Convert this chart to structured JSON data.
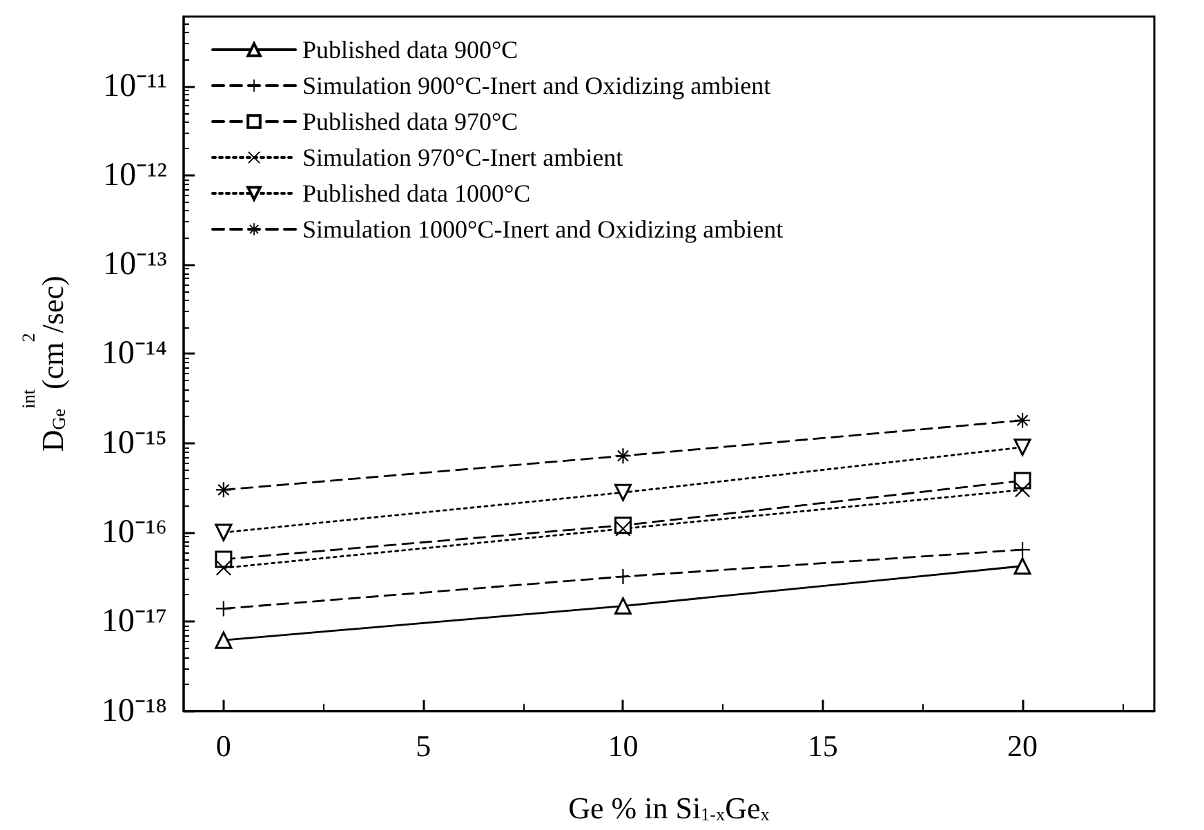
{
  "chart_data": {
    "type": "line",
    "xlabel": "Ge % in Si$_{1-x}$Ge$_{x}$",
    "ylabel": "D$_{Ge}$$^{int}$(cm$^{2}$/sec)",
    "x": [
      0,
      10,
      20
    ],
    "series": [
      {
        "name": "Published data 900°C",
        "color": "#000000",
        "marker": "triangle",
        "line_style": "solid",
        "values": [
          6.2e-18,
          1.5e-17,
          4.2e-17
        ]
      },
      {
        "name": "Simulation 900°C-Inert and Oxidizing ambient",
        "color": "#000000",
        "marker": "cross",
        "line_style": "dashed",
        "values": [
          1.4e-17,
          3.2e-17,
          6.4e-17
        ]
      },
      {
        "name": "Published data 970°C",
        "color": "#000000",
        "marker": "square",
        "line_style": "dashed",
        "values": [
          5e-17,
          1.2e-16,
          3.8e-16
        ]
      },
      {
        "name": "Simulation 970°C-Inert ambient",
        "color": "#000000",
        "marker": "x",
        "line_style": "dotted",
        "values": [
          4e-17,
          1.1e-16,
          3e-16
        ]
      },
      {
        "name": "Published data 1000°C",
        "color": "#000000",
        "marker": "triangle-down",
        "line_style": "dotted",
        "values": [
          1e-16,
          2.8e-16,
          9e-16
        ]
      },
      {
        "name": "Simulation 1000°C-Inert and Oxidizing ambient",
        "color": "#000000",
        "marker": "star",
        "line_style": "dashed",
        "values": [
          3e-16,
          7.2e-16,
          1.8e-15
        ]
      }
    ],
    "log": "y",
    "xlim": [
      -1,
      23.3
    ],
    "xticks": [
      0,
      5,
      10,
      15,
      20
    ],
    "ylim": [
      1e-18,
      6e-11
    ],
    "yticks": [
      {
        "value": 1e-18,
        "label": "10⁻¹⁸"
      },
      {
        "value": 1e-17,
        "label": "10⁻¹⁷"
      },
      {
        "value": 1e-16,
        "label": "10⁻¹⁶"
      },
      {
        "value": 1e-15,
        "label": "10⁻¹⁵"
      },
      {
        "value": 1e-14,
        "label": "10⁻¹⁴"
      },
      {
        "value": 1e-13,
        "label": "10⁻¹³"
      },
      {
        "value": 1e-12,
        "label": "10⁻¹²"
      },
      {
        "value": 1e-11,
        "label": "10⁻¹¹"
      }
    ],
    "grid": false,
    "legend": "top left"
  }
}
